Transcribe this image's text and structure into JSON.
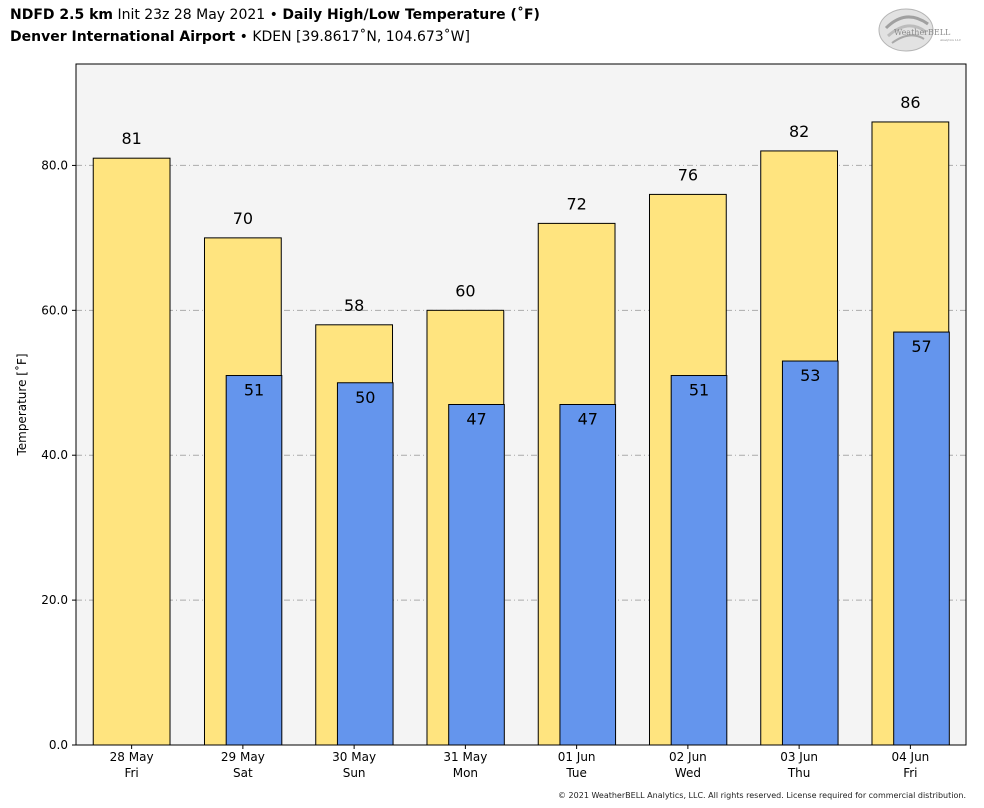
{
  "header": {
    "line1_model": "NDFD 2.5 km",
    "line1_init": "Init 23z 28 May 2021",
    "line1_sep": "•",
    "line1_title": "Daily High/Low Temperature (˚F)",
    "line2_location": "Denver International Airport",
    "line2_sep": "•",
    "line2_station": "KDEN [39.8617˚N, 104.673˚W]"
  },
  "logo": {
    "text": "WeatherBELL",
    "subtext": "Analytics LLC",
    "icon": "weatherbell-swirl-logo"
  },
  "footer": {
    "copyright": "© 2021 WeatherBELL Analytics, LLC. All rights reserved. License required for commercial distribution."
  },
  "colors": {
    "high": "#FFE47F",
    "low": "#6495ED",
    "plot_bg": "#F4F4F4",
    "grid": "#AAAAAA"
  },
  "chart_data": {
    "type": "bar",
    "ylabel": "Temperature [˚F]",
    "ylim": [
      0,
      94
    ],
    "yticks": [
      "0.0",
      "20.0",
      "40.0",
      "60.0",
      "80.0"
    ],
    "ytick_values": [
      0,
      20,
      40,
      60,
      80
    ],
    "grid": true,
    "categories": [
      [
        "28 May",
        "Fri"
      ],
      [
        "29 May",
        "Sat"
      ],
      [
        "30 May",
        "Sun"
      ],
      [
        "31 May",
        "Mon"
      ],
      [
        "01 Jun",
        "Tue"
      ],
      [
        "02 Jun",
        "Wed"
      ],
      [
        "03 Jun",
        "Thu"
      ],
      [
        "04 Jun",
        "Fri"
      ]
    ],
    "series": [
      {
        "key": "high",
        "values": [
          81,
          70,
          58,
          60,
          72,
          76,
          82,
          86
        ]
      },
      {
        "key": "low",
        "values": [
          null,
          51,
          50,
          47,
          47,
          51,
          53,
          57
        ]
      }
    ]
  }
}
